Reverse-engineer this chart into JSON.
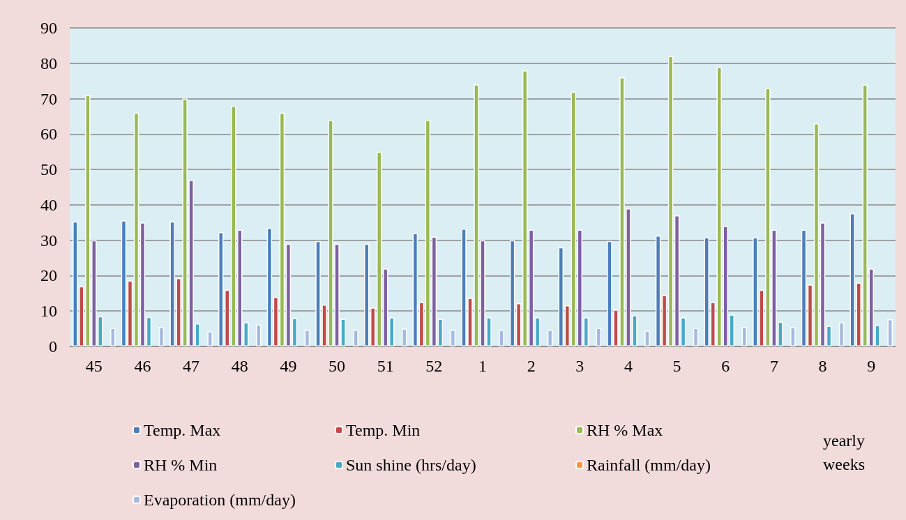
{
  "chart_data": {
    "type": "bar",
    "xlabel": "yearly weeks",
    "categories": [
      "45",
      "46",
      "47",
      "48",
      "49",
      "50",
      "51",
      "52",
      "1",
      "2",
      "3",
      "4",
      "5",
      "6",
      "7",
      "8",
      "9"
    ],
    "series": [
      {
        "name": "Temp. Max",
        "color": "#4a7ebb",
        "values": [
          35.3,
          35.6,
          35.3,
          32.3,
          33.5,
          29.8,
          29,
          32,
          33.3,
          30,
          28,
          29.8,
          31.3,
          30.8,
          30.8,
          33,
          37.6
        ]
      },
      {
        "name": "Temp. Min",
        "color": "#be4b48",
        "values": [
          17,
          18.6,
          19.3,
          16,
          14,
          11.8,
          11,
          12.5,
          13.7,
          12.2,
          11.6,
          10.4,
          14.5,
          12.5,
          16,
          17.5,
          18
        ]
      },
      {
        "name": "RH % Max",
        "color": "#98b954",
        "values": [
          71,
          66,
          70,
          68,
          66,
          64,
          55,
          64,
          74,
          78,
          72,
          76,
          82,
          79,
          73,
          63,
          74
        ]
      },
      {
        "name": "RH % Min",
        "color": "#7d60a0",
        "values": [
          30,
          35,
          47,
          33,
          29,
          29,
          22,
          31,
          30,
          33,
          33,
          39,
          37,
          34,
          33,
          35,
          22
        ]
      },
      {
        "name": "Sun shine (hrs/day)",
        "color": "#46aac5",
        "values": [
          8.5,
          8.3,
          6.5,
          6.8,
          8,
          7.8,
          8.2,
          7.8,
          8.2,
          8.2,
          8.2,
          8.8,
          8.2,
          9,
          7,
          5.8,
          6
        ]
      },
      {
        "name": "Rainfall (mm/day)",
        "color": "#f79646",
        "values": [
          0,
          0,
          0,
          0,
          0,
          0,
          0,
          0,
          0,
          0,
          0,
          0,
          0,
          0,
          0,
          0,
          0
        ]
      },
      {
        "name": "Evaporation (mm/day)",
        "color": "#a5b9e0",
        "values": [
          5.2,
          5.5,
          4.3,
          6.2,
          4.7,
          4.7,
          5,
          4.7,
          4.7,
          4.7,
          5.2,
          4.5,
          5.2,
          5.5,
          5.5,
          6.8,
          7.7
        ]
      }
    ],
    "ylim": [
      0,
      90
    ],
    "yticks": [
      0,
      10,
      20,
      30,
      40,
      50,
      60,
      70,
      80,
      90
    ],
    "grid": "y",
    "legend": "bottom"
  }
}
